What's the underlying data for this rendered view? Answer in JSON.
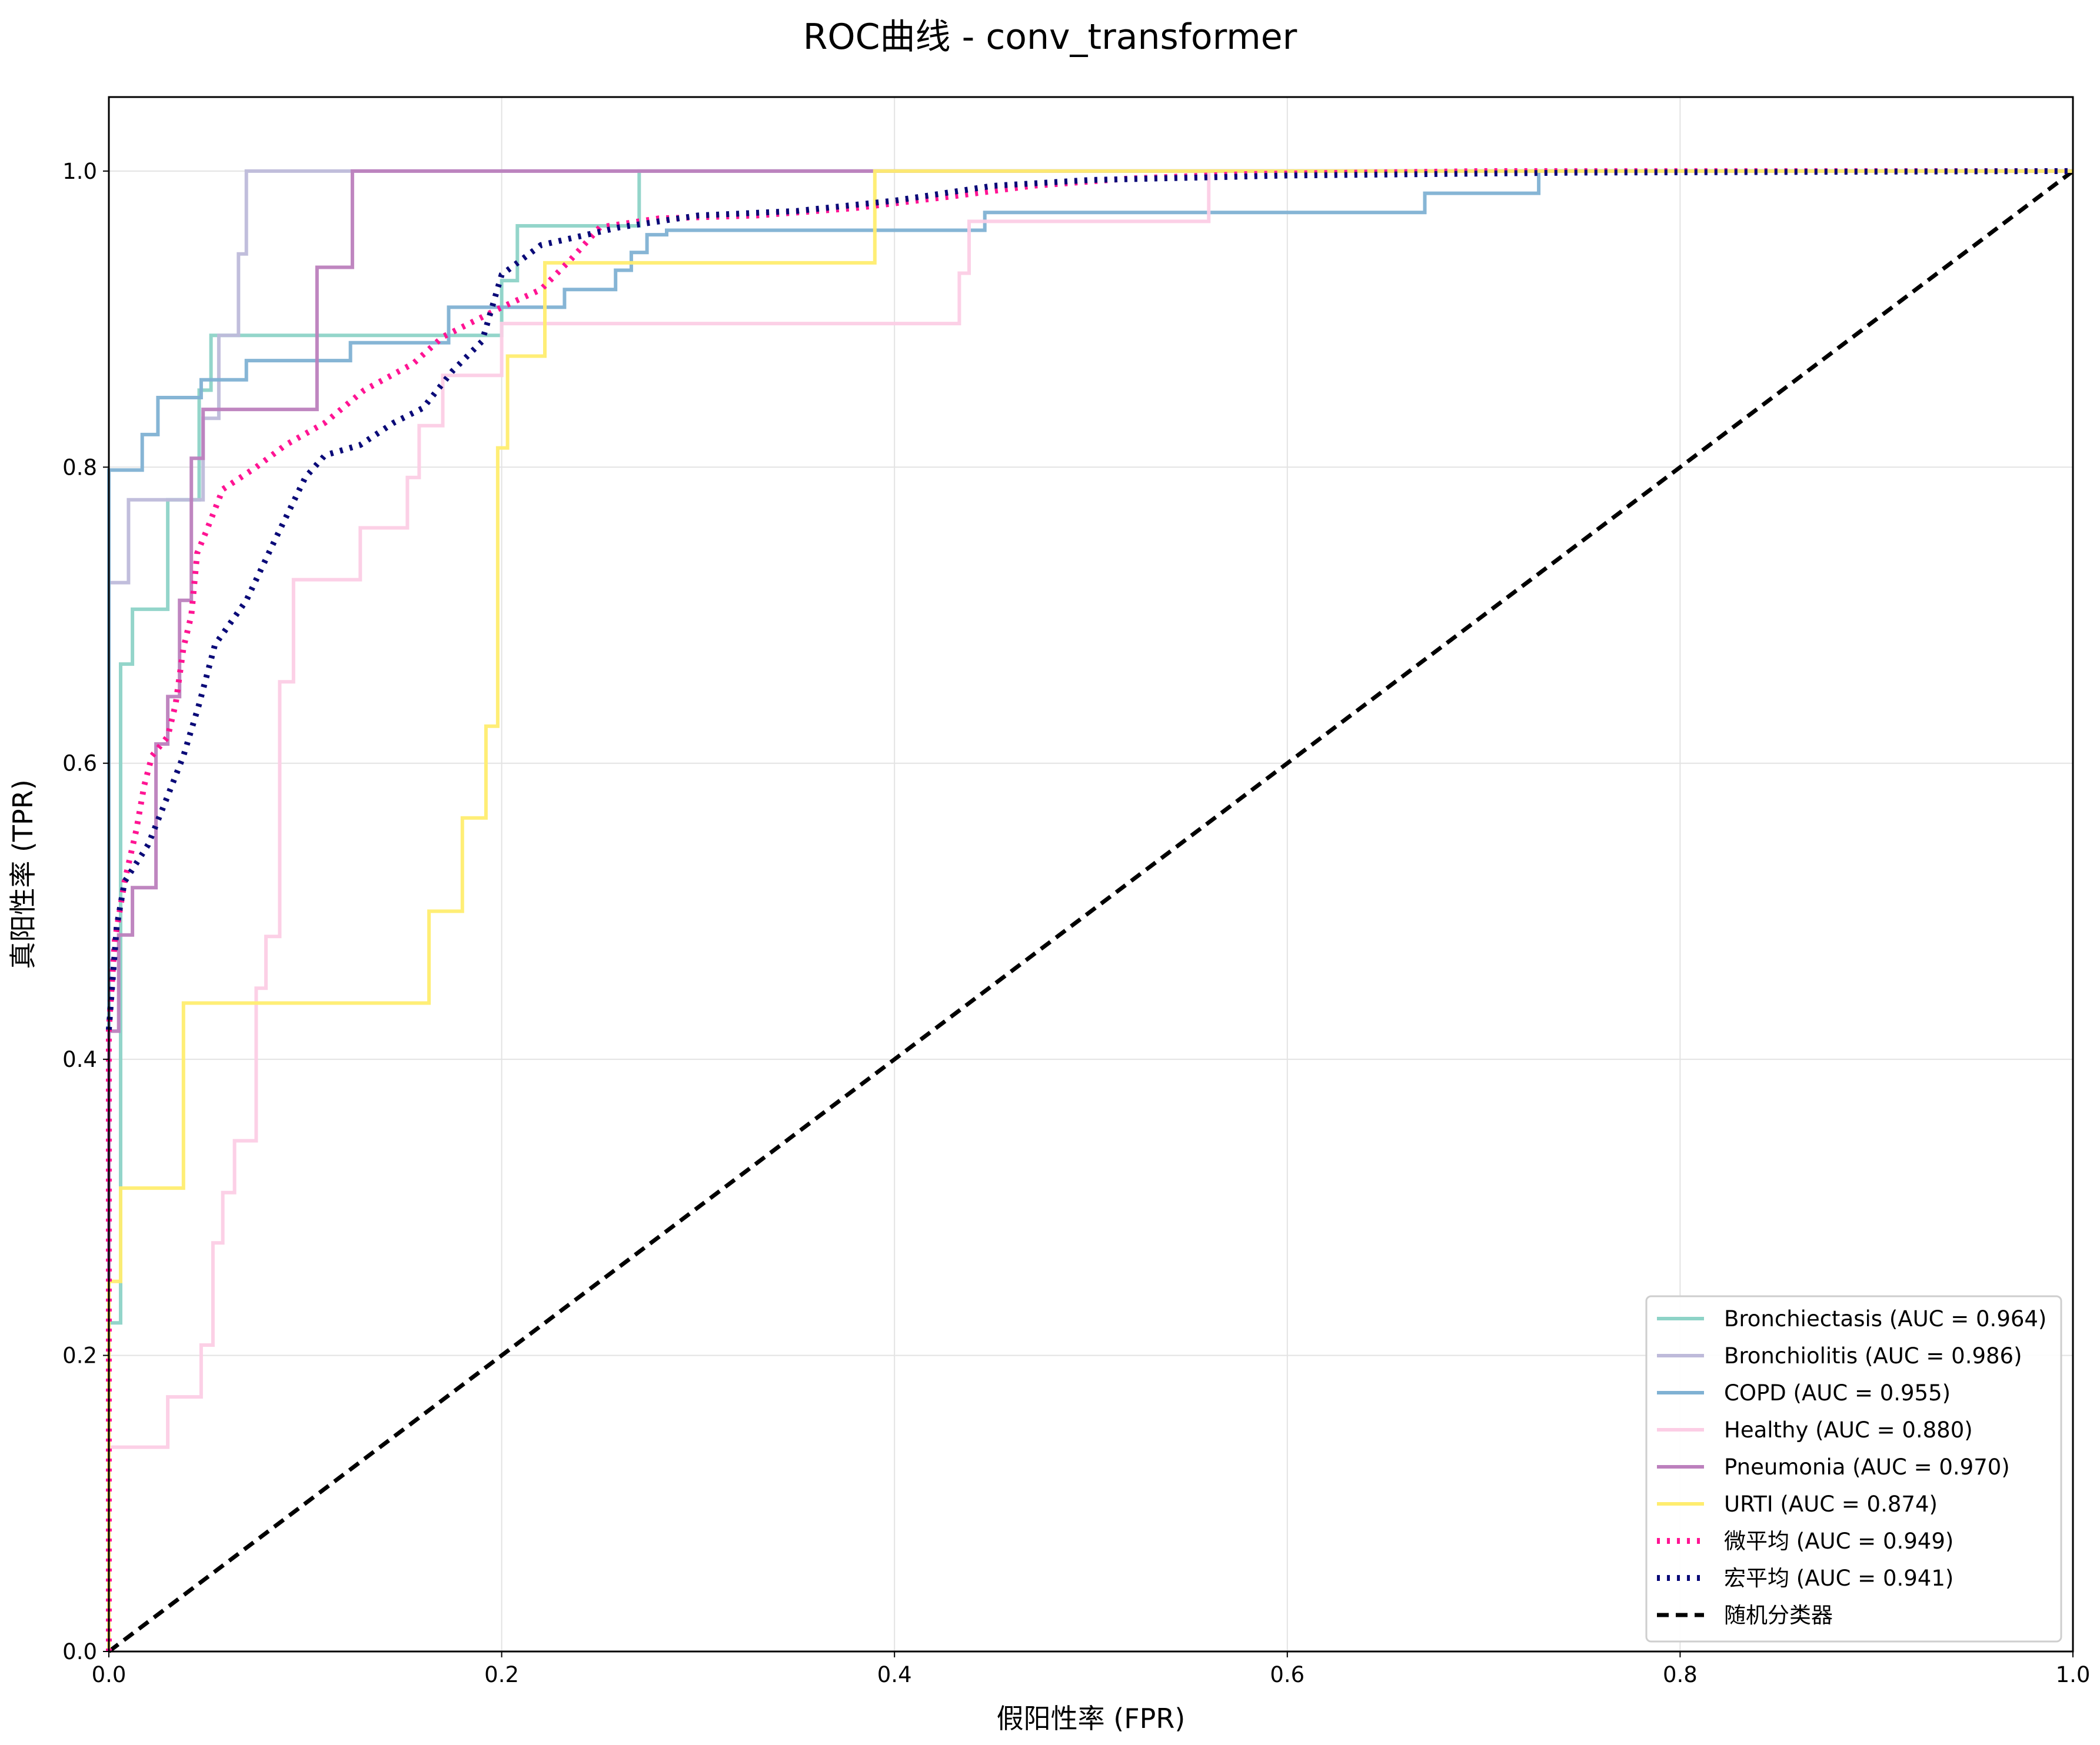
{
  "chart_data": {
    "type": "line",
    "title": "ROC曲线 - conv_transformer",
    "xlabel": "假阳性率 (FPR)",
    "ylabel": "真阳性率 (TPR)",
    "xlim": [
      0,
      1
    ],
    "ylim": [
      0,
      1.05
    ],
    "xticks": [
      "0.0",
      "0.2",
      "0.4",
      "0.6",
      "0.8",
      "1.0"
    ],
    "yticks": [
      "0.0",
      "0.2",
      "0.4",
      "0.6",
      "0.8",
      "1.0"
    ],
    "xtick_values": [
      0,
      0.2,
      0.4,
      0.6,
      0.8,
      1.0
    ],
    "ytick_values": [
      0,
      0.2,
      0.4,
      0.6,
      0.8,
      1.0
    ],
    "grid": true,
    "legend_position": "lower-right",
    "series": [
      {
        "name": "Bronchiectasis (AUC = 0.964)",
        "color": "#8dd3c7",
        "style": "solid",
        "points": [
          [
            0,
            0
          ],
          [
            0,
            0.222
          ],
          [
            0.006,
            0.222
          ],
          [
            0.006,
            0.667
          ],
          [
            0.012,
            0.667
          ],
          [
            0.012,
            0.704
          ],
          [
            0.03,
            0.704
          ],
          [
            0.03,
            0.778
          ],
          [
            0.046,
            0.778
          ],
          [
            0.046,
            0.852
          ],
          [
            0.052,
            0.852
          ],
          [
            0.052,
            0.889
          ],
          [
            0.2,
            0.889
          ],
          [
            0.2,
            0.926
          ],
          [
            0.208,
            0.926
          ],
          [
            0.208,
            0.963
          ],
          [
            0.27,
            0.963
          ],
          [
            0.27,
            1.0
          ],
          [
            1.0,
            1.0
          ]
        ]
      },
      {
        "name": "Bronchiolitis (AUC = 0.986)",
        "color": "#bebada",
        "style": "solid",
        "points": [
          [
            0,
            0
          ],
          [
            0,
            0.722
          ],
          [
            0.01,
            0.722
          ],
          [
            0.01,
            0.778
          ],
          [
            0.048,
            0.778
          ],
          [
            0.048,
            0.833
          ],
          [
            0.056,
            0.833
          ],
          [
            0.056,
            0.889
          ],
          [
            0.066,
            0.889
          ],
          [
            0.066,
            0.944
          ],
          [
            0.07,
            0.944
          ],
          [
            0.07,
            1.0
          ],
          [
            1.0,
            1.0
          ]
        ]
      },
      {
        "name": "COPD (AUC = 0.955)",
        "color": "#80b1d3",
        "style": "solid",
        "points": [
          [
            0,
            0
          ],
          [
            0,
            0.798
          ],
          [
            0.017,
            0.798
          ],
          [
            0.017,
            0.822
          ],
          [
            0.025,
            0.822
          ],
          [
            0.025,
            0.847
          ],
          [
            0.047,
            0.847
          ],
          [
            0.047,
            0.859
          ],
          [
            0.07,
            0.859
          ],
          [
            0.07,
            0.872
          ],
          [
            0.123,
            0.872
          ],
          [
            0.123,
            0.884
          ],
          [
            0.173,
            0.884
          ],
          [
            0.173,
            0.896
          ],
          [
            0.173,
            0.908
          ],
          [
            0.22,
            0.908
          ],
          [
            0.232,
            0.908
          ],
          [
            0.232,
            0.92
          ],
          [
            0.258,
            0.92
          ],
          [
            0.258,
            0.933
          ],
          [
            0.266,
            0.933
          ],
          [
            0.266,
            0.945
          ],
          [
            0.274,
            0.945
          ],
          [
            0.274,
            0.957
          ],
          [
            0.284,
            0.957
          ],
          [
            0.284,
            0.96
          ],
          [
            0.446,
            0.96
          ],
          [
            0.446,
            0.972
          ],
          [
            0.67,
            0.972
          ],
          [
            0.67,
            0.985
          ],
          [
            0.728,
            0.985
          ],
          [
            0.728,
            1.0
          ],
          [
            1.0,
            1.0
          ]
        ]
      },
      {
        "name": "Healthy (AUC = 0.880)",
        "color": "#fccde5",
        "style": "solid",
        "points": [
          [
            0,
            0
          ],
          [
            0,
            0.138
          ],
          [
            0.03,
            0.138
          ],
          [
            0.03,
            0.172
          ],
          [
            0.047,
            0.172
          ],
          [
            0.047,
            0.207
          ],
          [
            0.053,
            0.207
          ],
          [
            0.053,
            0.276
          ],
          [
            0.058,
            0.276
          ],
          [
            0.058,
            0.31
          ],
          [
            0.064,
            0.31
          ],
          [
            0.064,
            0.345
          ],
          [
            0.075,
            0.345
          ],
          [
            0.075,
            0.448
          ],
          [
            0.08,
            0.448
          ],
          [
            0.08,
            0.483
          ],
          [
            0.087,
            0.483
          ],
          [
            0.087,
            0.655
          ],
          [
            0.094,
            0.655
          ],
          [
            0.094,
            0.724
          ],
          [
            0.128,
            0.724
          ],
          [
            0.128,
            0.759
          ],
          [
            0.152,
            0.759
          ],
          [
            0.152,
            0.793
          ],
          [
            0.158,
            0.793
          ],
          [
            0.158,
            0.828
          ],
          [
            0.17,
            0.828
          ],
          [
            0.17,
            0.862
          ],
          [
            0.2,
            0.862
          ],
          [
            0.2,
            0.897
          ],
          [
            0.433,
            0.897
          ],
          [
            0.433,
            0.931
          ],
          [
            0.438,
            0.931
          ],
          [
            0.438,
            0.966
          ],
          [
            0.56,
            0.966
          ],
          [
            0.56,
            1.0
          ],
          [
            1.0,
            1.0
          ]
        ]
      },
      {
        "name": "Pneumonia (AUC = 0.970)",
        "color": "#bc80bd",
        "style": "solid",
        "points": [
          [
            0,
            0
          ],
          [
            0,
            0.419
          ],
          [
            0.005,
            0.419
          ],
          [
            0.005,
            0.484
          ],
          [
            0.012,
            0.484
          ],
          [
            0.012,
            0.516
          ],
          [
            0.024,
            0.516
          ],
          [
            0.024,
            0.613
          ],
          [
            0.03,
            0.613
          ],
          [
            0.03,
            0.645
          ],
          [
            0.036,
            0.645
          ],
          [
            0.036,
            0.71
          ],
          [
            0.042,
            0.71
          ],
          [
            0.042,
            0.806
          ],
          [
            0.048,
            0.806
          ],
          [
            0.048,
            0.839
          ],
          [
            0.106,
            0.839
          ],
          [
            0.106,
            0.935
          ],
          [
            0.124,
            0.935
          ],
          [
            0.124,
            1.0
          ],
          [
            1.0,
            1.0
          ]
        ]
      },
      {
        "name": "URTI (AUC = 0.874)",
        "color": "#ffed6f",
        "style": "solid",
        "points": [
          [
            0,
            0
          ],
          [
            0,
            0.25
          ],
          [
            0.006,
            0.25
          ],
          [
            0.006,
            0.313
          ],
          [
            0.038,
            0.313
          ],
          [
            0.038,
            0.438
          ],
          [
            0.163,
            0.438
          ],
          [
            0.163,
            0.5
          ],
          [
            0.18,
            0.5
          ],
          [
            0.18,
            0.563
          ],
          [
            0.192,
            0.563
          ],
          [
            0.192,
            0.625
          ],
          [
            0.198,
            0.625
          ],
          [
            0.198,
            0.813
          ],
          [
            0.203,
            0.813
          ],
          [
            0.203,
            0.875
          ],
          [
            0.222,
            0.875
          ],
          [
            0.222,
            0.938
          ],
          [
            0.39,
            0.938
          ],
          [
            0.39,
            1.0
          ],
          [
            1.0,
            1.0
          ]
        ]
      },
      {
        "name": "微平均 (AUC = 0.949)",
        "color": "#ff1493",
        "style": "dotted",
        "points": [
          [
            0,
            0
          ],
          [
            0,
            0.2
          ],
          [
            0,
            0.42
          ],
          [
            0.003,
            0.48
          ],
          [
            0.008,
            0.52
          ],
          [
            0.014,
            0.555
          ],
          [
            0.018,
            0.585
          ],
          [
            0.022,
            0.605
          ],
          [
            0.03,
            0.618
          ],
          [
            0.034,
            0.64
          ],
          [
            0.038,
            0.678
          ],
          [
            0.042,
            0.7
          ],
          [
            0.045,
            0.742
          ],
          [
            0.05,
            0.758
          ],
          [
            0.058,
            0.785
          ],
          [
            0.075,
            0.8
          ],
          [
            0.09,
            0.815
          ],
          [
            0.11,
            0.83
          ],
          [
            0.13,
            0.852
          ],
          [
            0.155,
            0.87
          ],
          [
            0.17,
            0.888
          ],
          [
            0.2,
            0.908
          ],
          [
            0.22,
            0.92
          ],
          [
            0.235,
            0.94
          ],
          [
            0.25,
            0.962
          ],
          [
            0.28,
            0.968
          ],
          [
            0.33,
            0.97
          ],
          [
            0.38,
            0.975
          ],
          [
            0.43,
            0.983
          ],
          [
            0.47,
            0.99
          ],
          [
            0.52,
            0.995
          ],
          [
            0.58,
            0.998
          ],
          [
            0.7,
            1.0
          ],
          [
            1.0,
            1.0
          ]
        ]
      },
      {
        "name": "宏平均 (AUC = 0.941)",
        "color": "#0a0a78",
        "style": "dotted",
        "points": [
          [
            0,
            0.42
          ],
          [
            0.004,
            0.49
          ],
          [
            0.008,
            0.52
          ],
          [
            0.02,
            0.545
          ],
          [
            0.03,
            0.578
          ],
          [
            0.038,
            0.605
          ],
          [
            0.046,
            0.64
          ],
          [
            0.054,
            0.68
          ],
          [
            0.07,
            0.71
          ],
          [
            0.085,
            0.752
          ],
          [
            0.1,
            0.793
          ],
          [
            0.11,
            0.808
          ],
          [
            0.128,
            0.815
          ],
          [
            0.145,
            0.83
          ],
          [
            0.16,
            0.84
          ],
          [
            0.175,
            0.865
          ],
          [
            0.19,
            0.885
          ],
          [
            0.2,
            0.93
          ],
          [
            0.22,
            0.95
          ],
          [
            0.26,
            0.962
          ],
          [
            0.3,
            0.97
          ],
          [
            0.35,
            0.973
          ],
          [
            0.4,
            0.98
          ],
          [
            0.45,
            0.99
          ],
          [
            0.5,
            0.994
          ],
          [
            0.6,
            0.997
          ],
          [
            0.75,
            0.999
          ],
          [
            1.0,
            1.0
          ]
        ]
      }
    ],
    "reference_line": {
      "name": "随机分类器",
      "color": "#000000",
      "style": "dashed",
      "points": [
        [
          0,
          0
        ],
        [
          1,
          1
        ]
      ]
    }
  }
}
